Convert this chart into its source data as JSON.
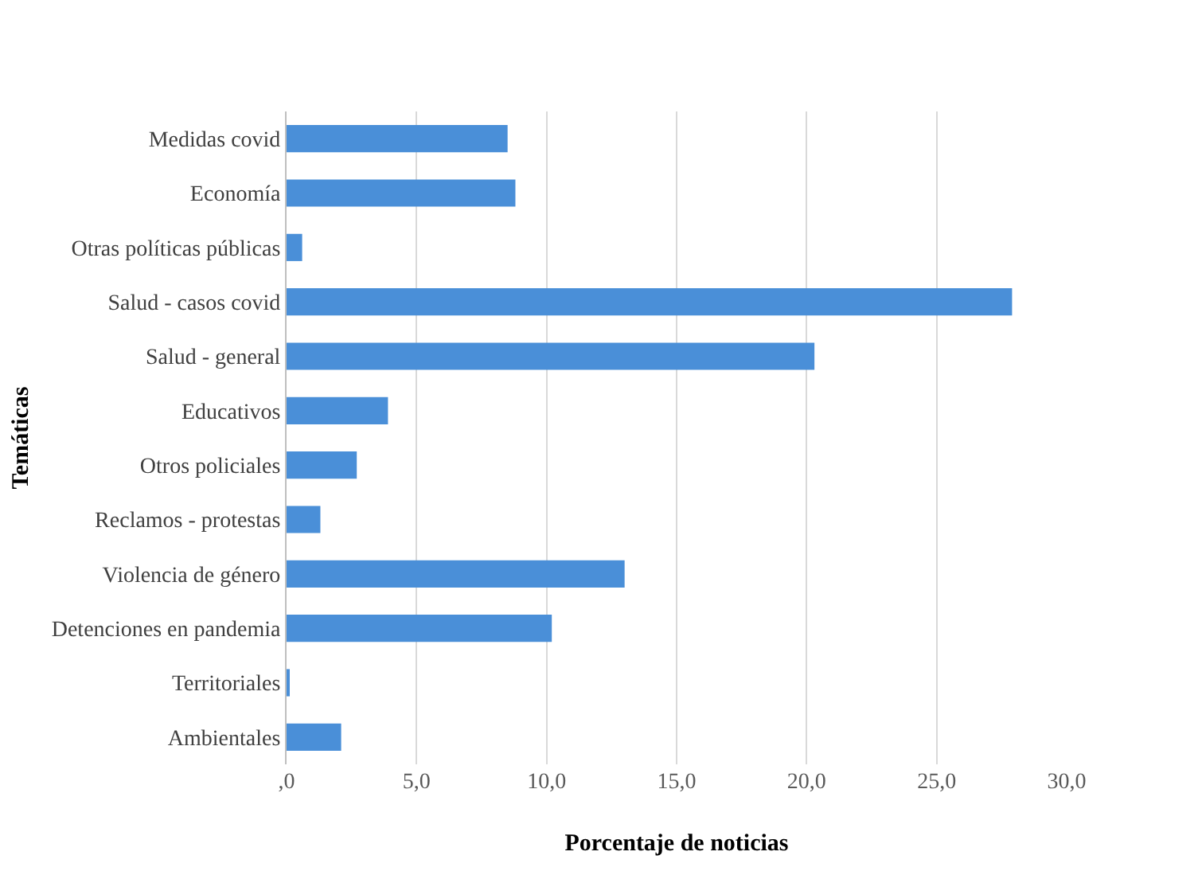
{
  "chart_data": {
    "type": "bar",
    "orientation": "horizontal",
    "xlabel": "Porcentaje de noticias",
    "ylabel": "Temáticas",
    "categories": [
      "Medidas covid",
      "Economía",
      "Otras políticas públicas",
      "Salud - casos covid",
      "Salud - general",
      "Educativos",
      "Otros policiales",
      "Reclamos - protestas",
      "Violencia de género",
      "Detenciones en pandemia",
      "Territoriales",
      "Ambientales"
    ],
    "values": [
      8.5,
      8.8,
      0.6,
      27.9,
      20.3,
      3.9,
      2.7,
      1.3,
      13.0,
      10.2,
      0.1,
      2.1
    ],
    "color": "#4a8fd8",
    "xlim": [
      0,
      30
    ],
    "xticks": [
      {
        "value": 0,
        "label": ",0"
      },
      {
        "value": 5,
        "label": "5,0"
      },
      {
        "value": 10,
        "label": "10,0"
      },
      {
        "value": 15,
        "label": "15,0"
      },
      {
        "value": 20,
        "label": "20,0"
      },
      {
        "value": 25,
        "label": "25,0"
      },
      {
        "value": 30,
        "label": "30,0"
      }
    ],
    "grid": "x",
    "legend": false
  }
}
